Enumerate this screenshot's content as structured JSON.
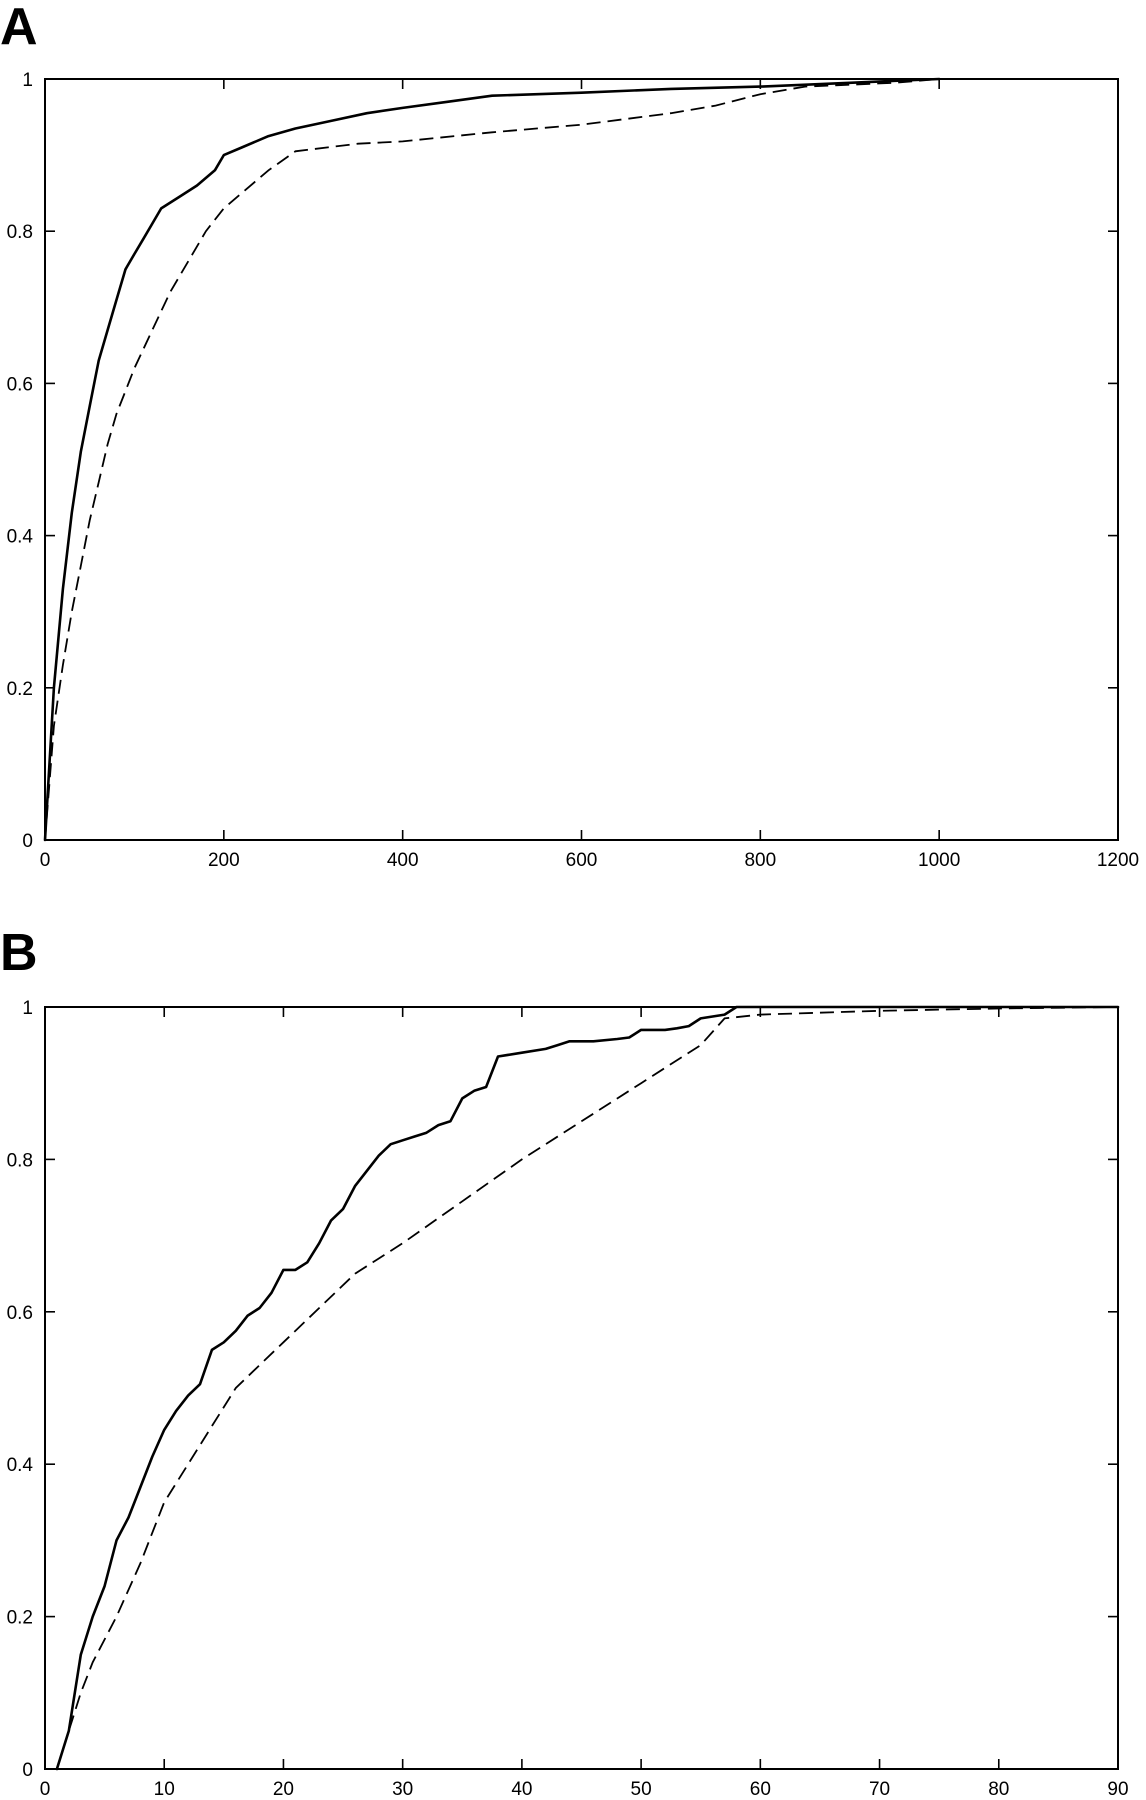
{
  "chart_data": [
    {
      "panel": "A",
      "type": "line",
      "xlim": [
        0,
        1200
      ],
      "ylim": [
        0,
        1
      ],
      "xticks": [
        "0",
        "200",
        "400",
        "600",
        "800",
        "1000",
        "1200"
      ],
      "yticks": [
        "0",
        "0.2",
        "0.4",
        "0.6",
        "0.8",
        "1"
      ],
      "grid": false,
      "series": [
        {
          "style": "solid",
          "points": [
            [
              0,
              0
            ],
            [
              10,
              0.2
            ],
            [
              20,
              0.33
            ],
            [
              30,
              0.43
            ],
            [
              40,
              0.51
            ],
            [
              50,
              0.57
            ],
            [
              60,
              0.63
            ],
            [
              70,
              0.67
            ],
            [
              80,
              0.71
            ],
            [
              90,
              0.75
            ],
            [
              100,
              0.77
            ],
            [
              110,
              0.79
            ],
            [
              120,
              0.81
            ],
            [
              130,
              0.83
            ],
            [
              150,
              0.845
            ],
            [
              170,
              0.86
            ],
            [
              190,
              0.88
            ],
            [
              200,
              0.9
            ],
            [
              220,
              0.91
            ],
            [
              250,
              0.925
            ],
            [
              280,
              0.935
            ],
            [
              320,
              0.945
            ],
            [
              360,
              0.955
            ],
            [
              400,
              0.962
            ],
            [
              450,
              0.97
            ],
            [
              500,
              0.978
            ],
            [
              600,
              0.982
            ],
            [
              700,
              0.987
            ],
            [
              800,
              0.99
            ],
            [
              900,
              0.995
            ],
            [
              1000,
              1.0
            ]
          ]
        },
        {
          "style": "dashed",
          "points": [
            [
              0,
              0
            ],
            [
              10,
              0.15
            ],
            [
              20,
              0.23
            ],
            [
              30,
              0.3
            ],
            [
              40,
              0.36
            ],
            [
              50,
              0.42
            ],
            [
              60,
              0.47
            ],
            [
              70,
              0.52
            ],
            [
              80,
              0.56
            ],
            [
              90,
              0.59
            ],
            [
              100,
              0.62
            ],
            [
              120,
              0.67
            ],
            [
              140,
              0.72
            ],
            [
              160,
              0.76
            ],
            [
              180,
              0.8
            ],
            [
              200,
              0.83
            ],
            [
              220,
              0.85
            ],
            [
              250,
              0.88
            ],
            [
              280,
              0.905
            ],
            [
              350,
              0.915
            ],
            [
              400,
              0.918
            ],
            [
              500,
              0.93
            ],
            [
              600,
              0.94
            ],
            [
              700,
              0.955
            ],
            [
              750,
              0.965
            ],
            [
              800,
              0.98
            ],
            [
              850,
              0.99
            ],
            [
              950,
              0.995
            ],
            [
              1000,
              1.0
            ]
          ]
        }
      ]
    },
    {
      "panel": "B",
      "type": "line",
      "xlim": [
        0,
        90
      ],
      "ylim": [
        0,
        1
      ],
      "xticks": [
        "0",
        "10",
        "20",
        "30",
        "40",
        "50",
        "60",
        "70",
        "80",
        "90"
      ],
      "yticks": [
        "0",
        "0.2",
        "0.4",
        "0.6",
        "0.8",
        "1"
      ],
      "grid": false,
      "series": [
        {
          "style": "solid",
          "points": [
            [
              1,
              0
            ],
            [
              2,
              0.05
            ],
            [
              3,
              0.15
            ],
            [
              4,
              0.2
            ],
            [
              5,
              0.24
            ],
            [
              6,
              0.3
            ],
            [
              7,
              0.33
            ],
            [
              8,
              0.37
            ],
            [
              9,
              0.41
            ],
            [
              10,
              0.445
            ],
            [
              11,
              0.47
            ],
            [
              12,
              0.49
            ],
            [
              13,
              0.505
            ],
            [
              14,
              0.55
            ],
            [
              15,
              0.56
            ],
            [
              16,
              0.575
            ],
            [
              17,
              0.595
            ],
            [
              18,
              0.605
            ],
            [
              19,
              0.625
            ],
            [
              20,
              0.655
            ],
            [
              21,
              0.655
            ],
            [
              22,
              0.665
            ],
            [
              23,
              0.69
            ],
            [
              24,
              0.72
            ],
            [
              25,
              0.735
            ],
            [
              26,
              0.765
            ],
            [
              27,
              0.785
            ],
            [
              28,
              0.805
            ],
            [
              29,
              0.82
            ],
            [
              30,
              0.825
            ],
            [
              31,
              0.83
            ],
            [
              32,
              0.835
            ],
            [
              33,
              0.845
            ],
            [
              34,
              0.85
            ],
            [
              35,
              0.88
            ],
            [
              36,
              0.89
            ],
            [
              37,
              0.895
            ],
            [
              38,
              0.935
            ],
            [
              40,
              0.94
            ],
            [
              42,
              0.945
            ],
            [
              43,
              0.95
            ],
            [
              44,
              0.955
            ],
            [
              46,
              0.955
            ],
            [
              48,
              0.958
            ],
            [
              49,
              0.96
            ],
            [
              50,
              0.97
            ],
            [
              52,
              0.97
            ],
            [
              53,
              0.972
            ],
            [
              54,
              0.975
            ],
            [
              55,
              0.985
            ],
            [
              57,
              0.99
            ],
            [
              58,
              1.0
            ],
            [
              60,
              1.0
            ],
            [
              90,
              1.0
            ]
          ]
        },
        {
          "style": "dashed",
          "points": [
            [
              1,
              0
            ],
            [
              2,
              0.05
            ],
            [
              3,
              0.1
            ],
            [
              4,
              0.14
            ],
            [
              6,
              0.2
            ],
            [
              8,
              0.27
            ],
            [
              10,
              0.35
            ],
            [
              12,
              0.4
            ],
            [
              14,
              0.45
            ],
            [
              16,
              0.5
            ],
            [
              18,
              0.53
            ],
            [
              20,
              0.56
            ],
            [
              22,
              0.59
            ],
            [
              24,
              0.62
            ],
            [
              26,
              0.65
            ],
            [
              28,
              0.67
            ],
            [
              30,
              0.69
            ],
            [
              35,
              0.745
            ],
            [
              40,
              0.8
            ],
            [
              45,
              0.85
            ],
            [
              50,
              0.9
            ],
            [
              55,
              0.95
            ],
            [
              57,
              0.985
            ],
            [
              60,
              0.99
            ],
            [
              70,
              0.995
            ],
            [
              80,
              0.998
            ],
            [
              90,
              1.0
            ]
          ]
        }
      ]
    }
  ],
  "panels": [
    {
      "label": "A"
    },
    {
      "label": "B"
    }
  ]
}
